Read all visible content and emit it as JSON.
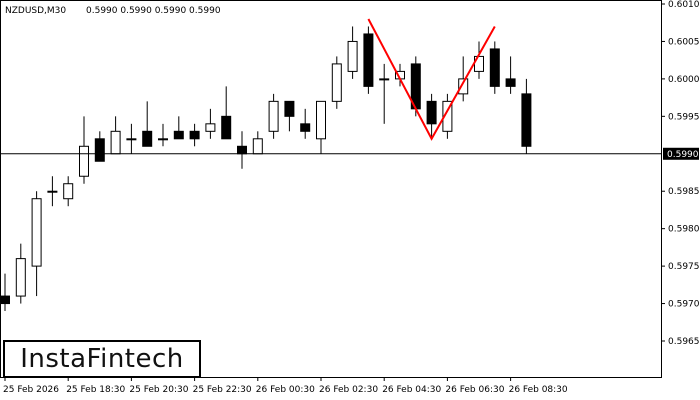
{
  "header": {
    "symbol": "NZDUSD,M30",
    "ohlc": "0.5990 0.5990 0.5990 0.5990"
  },
  "logo": {
    "text": "InstaFintech"
  },
  "colors": {
    "pattern": "#ff0000",
    "bull": "#ffffff",
    "bear": "#000000",
    "line": "#000000"
  },
  "chart_data": {
    "type": "candlestick",
    "symbol": "NZDUSD",
    "timeframe": "M30",
    "ylim": [
      0.5959,
      0.601
    ],
    "y_ticks": [
      0.5965,
      0.597,
      0.5975,
      0.598,
      0.5985,
      0.599,
      0.5995,
      0.6,
      0.6005,
      0.601
    ],
    "current_price": 0.599,
    "current_price_label": "0.5990",
    "x_tick_labels": [
      {
        "label": "25 Feb 2026",
        "index": 0
      },
      {
        "label": "25 Feb 18:30",
        "index": 4
      },
      {
        "label": "25 Feb 20:30",
        "index": 8
      },
      {
        "label": "25 Feb 22:30",
        "index": 12
      },
      {
        "label": "26 Feb 00:30",
        "index": 16
      },
      {
        "label": "26 Feb 02:30",
        "index": 20
      },
      {
        "label": "26 Feb 04:30",
        "index": 24
      },
      {
        "label": "26 Feb 06:30",
        "index": 28
      },
      {
        "label": "26 Feb 08:30",
        "index": 32
      }
    ],
    "candles": [
      {
        "o": 0.5971,
        "h": 0.5974,
        "l": 0.5969,
        "c": 0.597
      },
      {
        "o": 0.5971,
        "h": 0.5978,
        "l": 0.597,
        "c": 0.5976
      },
      {
        "o": 0.5975,
        "h": 0.5985,
        "l": 0.5971,
        "c": 0.5984
      },
      {
        "o": 0.5985,
        "h": 0.5987,
        "l": 0.5983,
        "c": 0.5985
      },
      {
        "o": 0.5984,
        "h": 0.5987,
        "l": 0.5983,
        "c": 0.5986
      },
      {
        "o": 0.5987,
        "h": 0.5995,
        "l": 0.5986,
        "c": 0.5991
      },
      {
        "o": 0.5992,
        "h": 0.5993,
        "l": 0.5989,
        "c": 0.5989
      },
      {
        "o": 0.599,
        "h": 0.5995,
        "l": 0.599,
        "c": 0.5993
      },
      {
        "o": 0.5992,
        "h": 0.5994,
        "l": 0.599,
        "c": 0.5992
      },
      {
        "o": 0.5993,
        "h": 0.5997,
        "l": 0.5991,
        "c": 0.5991
      },
      {
        "o": 0.5992,
        "h": 0.5994,
        "l": 0.5991,
        "c": 0.5992
      },
      {
        "o": 0.5993,
        "h": 0.5995,
        "l": 0.5992,
        "c": 0.5992
      },
      {
        "o": 0.5993,
        "h": 0.5994,
        "l": 0.5991,
        "c": 0.5992
      },
      {
        "o": 0.5993,
        "h": 0.5996,
        "l": 0.5992,
        "c": 0.5994
      },
      {
        "o": 0.5995,
        "h": 0.5999,
        "l": 0.5992,
        "c": 0.5992
      },
      {
        "o": 0.5991,
        "h": 0.5993,
        "l": 0.5988,
        "c": 0.599
      },
      {
        "o": 0.599,
        "h": 0.5993,
        "l": 0.599,
        "c": 0.5992
      },
      {
        "o": 0.5993,
        "h": 0.5998,
        "l": 0.5992,
        "c": 0.5997
      },
      {
        "o": 0.5997,
        "h": 0.5997,
        "l": 0.5993,
        "c": 0.5995
      },
      {
        "o": 0.5994,
        "h": 0.5996,
        "l": 0.5992,
        "c": 0.5993
      },
      {
        "o": 0.5992,
        "h": 0.5997,
        "l": 0.599,
        "c": 0.5997
      },
      {
        "o": 0.5997,
        "h": 0.6003,
        "l": 0.5996,
        "c": 0.6002
      },
      {
        "o": 0.6001,
        "h": 0.6007,
        "l": 0.6,
        "c": 0.6005
      },
      {
        "o": 0.6006,
        "h": 0.6007,
        "l": 0.5998,
        "c": 0.5999
      },
      {
        "o": 0.6,
        "h": 0.6002,
        "l": 0.5994,
        "c": 0.6
      },
      {
        "o": 0.6,
        "h": 0.6002,
        "l": 0.5999,
        "c": 0.6001
      },
      {
        "o": 0.6002,
        "h": 0.6003,
        "l": 0.5995,
        "c": 0.5996
      },
      {
        "o": 0.5997,
        "h": 0.5998,
        "l": 0.5992,
        "c": 0.5994
      },
      {
        "o": 0.5993,
        "h": 0.5998,
        "l": 0.5992,
        "c": 0.5997
      },
      {
        "o": 0.5998,
        "h": 0.6003,
        "l": 0.5997,
        "c": 0.6
      },
      {
        "o": 0.6001,
        "h": 0.6005,
        "l": 0.6,
        "c": 0.6003
      },
      {
        "o": 0.6004,
        "h": 0.6005,
        "l": 0.5998,
        "c": 0.5999
      },
      {
        "o": 0.6,
        "h": 0.6003,
        "l": 0.5998,
        "c": 0.5999
      },
      {
        "o": 0.5998,
        "h": 0.6,
        "l": 0.599,
        "c": 0.5991
      }
    ],
    "pattern_points": [
      {
        "index": 23,
        "price": 0.6008
      },
      {
        "index": 27,
        "price": 0.5992
      },
      {
        "index": 31,
        "price": 0.6007
      }
    ]
  }
}
